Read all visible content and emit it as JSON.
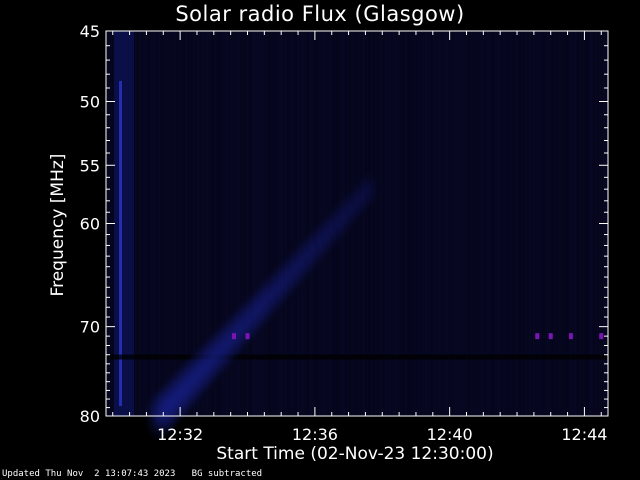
{
  "chart_data": {
    "type": "heatmap",
    "title": "Solar radio Flux (Glasgow)",
    "xlabel": "Start Time (02-Nov-23 12:30:00)",
    "ylabel": "Frequency [MHz]",
    "xlim_minutes_after_1230": [
      -0.2,
      14.7
    ],
    "ylim": [
      45,
      80
    ],
    "y_scale": "log",
    "x_ticks": [
      {
        "label": "12:32",
        "value": 2
      },
      {
        "label": "12:36",
        "value": 6
      },
      {
        "label": "12:40",
        "value": 10
      },
      {
        "label": "12:44",
        "value": 14
      }
    ],
    "y_ticks": [
      {
        "label": "45",
        "value": 45
      },
      {
        "label": "50",
        "value": 50
      },
      {
        "label": "55",
        "value": 55
      },
      {
        "label": "60",
        "value": 60
      },
      {
        "label": "70",
        "value": 70
      },
      {
        "label": "80",
        "value": 80
      }
    ],
    "colors": {
      "background": "#000000",
      "low_intensity": "#05051a",
      "burst_emission": "#1a24a0",
      "strong_interference": "#7a14b4"
    },
    "features": {
      "drifting_burst": {
        "start_time_min": 1.4,
        "start_freq_mhz": 80,
        "end_time_min": 7.6,
        "end_freq_mhz": 57
      },
      "interference_dots": [
        {
          "time_min": 3.6,
          "freq_mhz": 71
        },
        {
          "time_min": 4.0,
          "freq_mhz": 71
        },
        {
          "time_min": 12.6,
          "freq_mhz": 71
        },
        {
          "time_min": 13.0,
          "freq_mhz": 71
        },
        {
          "time_min": 13.6,
          "freq_mhz": 71
        },
        {
          "time_min": 14.5,
          "freq_mhz": 71
        }
      ]
    }
  },
  "footer": {
    "updated": "Updated Thu Nov  2 13:07:43 2023",
    "note": "BG subtracted"
  }
}
